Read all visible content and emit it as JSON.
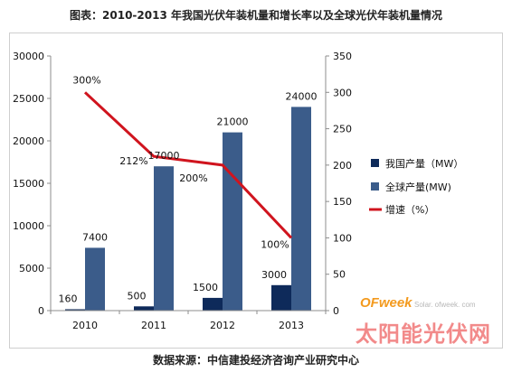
{
  "title": "图表：2010-2013 年我国光伏年装机量和增长率以及全球光伏年装机量情况",
  "source": "数据来源：中信建投经济咨询产业研究中心",
  "watermark": {
    "brand": "OFweek",
    "site": "Solar. ofweek. com",
    "cn": "太阳能光伏网"
  },
  "colors": {
    "china": "#0e2a5a",
    "global": "#3b5c8a",
    "growth": "#d0141e"
  },
  "chart_data": {
    "type": "bar",
    "categories": [
      "2010",
      "2011",
      "2012",
      "2013"
    ],
    "series": [
      {
        "name": "我国产量（MW）",
        "values": [
          160,
          500,
          1500,
          3000
        ]
      },
      {
        "name": "全球产量(MW)",
        "values": [
          7400,
          17000,
          21000,
          24000
        ]
      }
    ],
    "line_series": {
      "name": "增速（%）",
      "values": [
        300,
        212,
        200,
        100
      ],
      "labels": [
        "300%",
        "212%",
        "200%",
        "100%"
      ]
    },
    "y_left": {
      "min": 0,
      "max": 30000,
      "ticks": [
        "0",
        "5000",
        "10000",
        "15000",
        "20000",
        "25000",
        "30000"
      ]
    },
    "y_right": {
      "min": 0,
      "max": 350,
      "ticks": [
        "0",
        "50",
        "100",
        "150",
        "200",
        "250",
        "300",
        "350"
      ]
    },
    "legend": "right"
  }
}
